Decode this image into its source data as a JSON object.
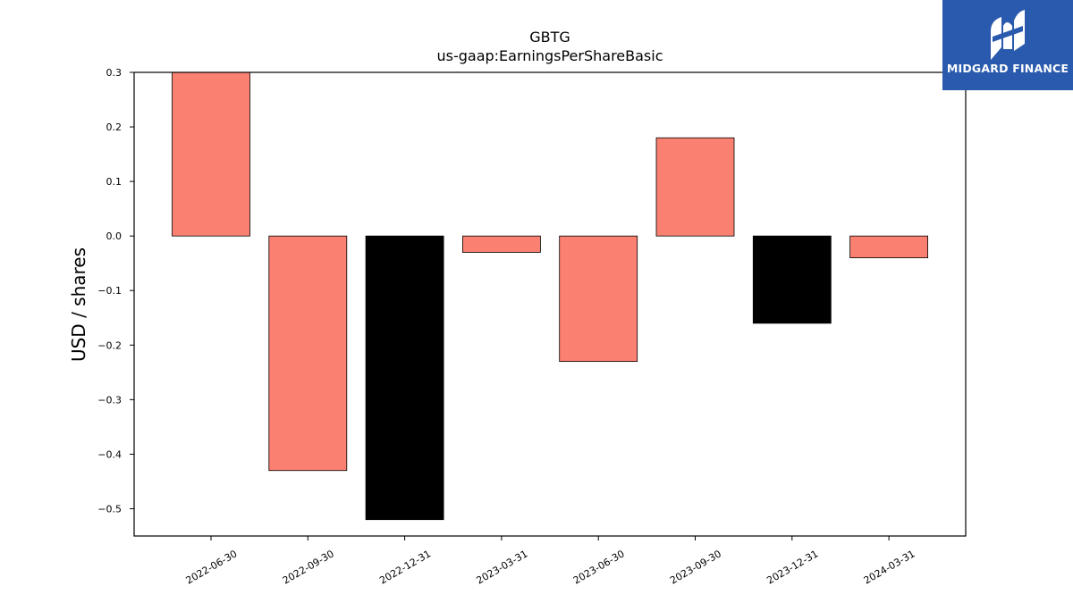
{
  "chart_data": {
    "type": "bar",
    "title": "GBTG",
    "subtitle": "us-gaap:EarningsPerShareBasic",
    "xlabel": "",
    "ylabel": "USD / shares",
    "categories": [
      "2022-06-30",
      "2022-09-30",
      "2022-12-31",
      "2023-03-31",
      "2023-06-30",
      "2023-09-30",
      "2023-12-31",
      "2024-03-31"
    ],
    "values": [
      0.3,
      -0.43,
      -0.52,
      -0.03,
      -0.23,
      0.18,
      -0.16,
      -0.04
    ],
    "bar_colors": [
      "#fa8072",
      "#fa8072",
      "#000000",
      "#fa8072",
      "#fa8072",
      "#fa8072",
      "#000000",
      "#fa8072"
    ],
    "ylim": [
      -0.55,
      0.3
    ],
    "yticks": [
      0.3,
      0.2,
      0.1,
      0.0,
      -0.1,
      -0.2,
      -0.3,
      -0.4,
      -0.5
    ],
    "ytick_labels": [
      "0.3",
      "0.2",
      "0.1",
      "0.0",
      "−0.1",
      "−0.2",
      "−0.3",
      "−0.4",
      "−0.5"
    ],
    "grid": false,
    "legend": "none"
  },
  "logo": {
    "text": "MIDGARD FINANCE",
    "background": "#2a5aad",
    "icon": "midgard-logo-icon"
  }
}
